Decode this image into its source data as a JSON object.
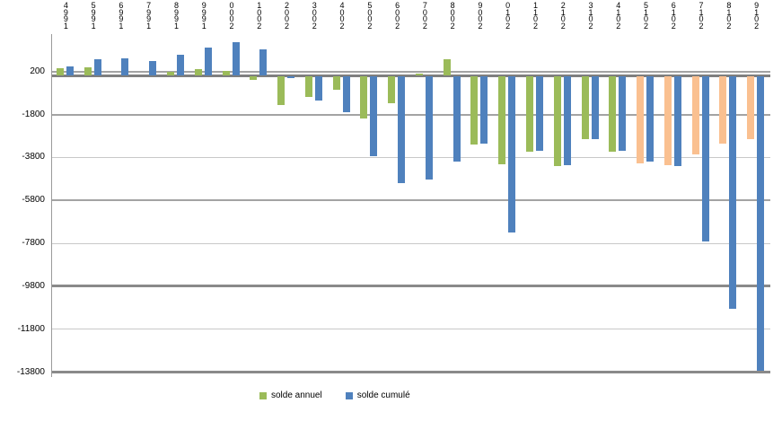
{
  "chart_data": {
    "type": "bar",
    "title": "",
    "xlabel": "",
    "ylabel": "",
    "categories": [
      "1994",
      "1995",
      "1996",
      "1997",
      "1998",
      "1999",
      "2000",
      "2001",
      "2002",
      "2003",
      "2004",
      "2005",
      "2006",
      "2007",
      "2008",
      "2009",
      "2010",
      "2011",
      "2012",
      "2013",
      "2014",
      "2015",
      "2016",
      "2017",
      "2018",
      "2019"
    ],
    "series": [
      {
        "name": "solde annuel",
        "color": "#9BBB59",
        "projected_color": "#FAC090",
        "projected_from_index": 21,
        "values": [
          350,
          380,
          0,
          0,
          200,
          320,
          250,
          -180,
          -1350,
          -980,
          -660,
          -1970,
          -1270,
          120,
          780,
          -3200,
          -4100,
          -3550,
          -4200,
          -2960,
          -3540,
          -4060,
          -4170,
          -3660,
          -3140,
          -2930
        ]
      },
      {
        "name": "solde cumulé",
        "color": "#4F81BD",
        "values": [
          420,
          790,
          800,
          680,
          980,
          1300,
          1560,
          1230,
          -120,
          -1130,
          -1680,
          -3730,
          -4990,
          -4830,
          -4000,
          -3150,
          -7310,
          -3510,
          -4160,
          -2930,
          -3510,
          -4000,
          -4210,
          -7720,
          -10850,
          -13740
        ]
      }
    ],
    "ylim": [
      -14100,
      1950
    ],
    "y_ticks": [
      200,
      -1800,
      -3800,
      -5800,
      -7800,
      -9800,
      -11800,
      -13800
    ],
    "y_tick_labels": [
      "200",
      "-1800",
      "-3800",
      "-5800",
      "-7800",
      "-9800",
      "-11800",
      "-13800"
    ],
    "zero_line": 0,
    "grid": true,
    "x_label_style": "vertical-stacked-reversed",
    "legend_position": "bottom",
    "legend": [
      {
        "label": "solde annuel",
        "color": "#9BBB59"
      },
      {
        "label": "solde cumulé",
        "color": "#4F81BD"
      }
    ]
  },
  "style_colors": {
    "grid_medium": "#a3a3a3",
    "grid_thin": "#c9c9c9",
    "grid_thick": "#8a8a8a",
    "zero_line": "#7f7f7f",
    "axis_line": "#9a9a9a"
  }
}
